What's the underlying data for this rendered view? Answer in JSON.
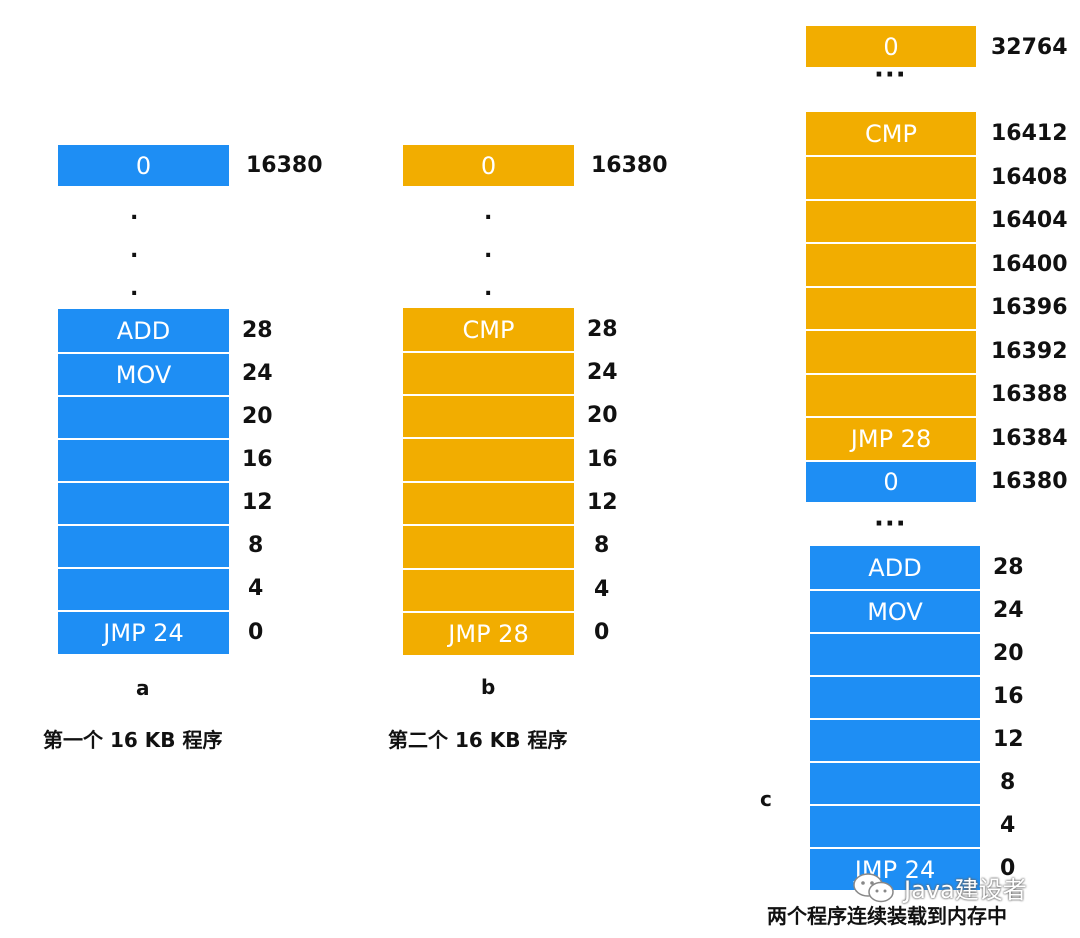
{
  "diagrams": {
    "a": {
      "label": "a",
      "caption": "第一个 16 KB 程序",
      "top": {
        "value": "0",
        "address": "16380"
      },
      "dots": [
        ".",
        ".",
        "."
      ],
      "rows": [
        {
          "value": "ADD",
          "address": "28"
        },
        {
          "value": "MOV",
          "address": "24"
        },
        {
          "value": "",
          "address": "20"
        },
        {
          "value": "",
          "address": "16"
        },
        {
          "value": "",
          "address": "12"
        },
        {
          "value": "",
          "address": "8"
        },
        {
          "value": "",
          "address": "4"
        },
        {
          "value": "JMP 24",
          "address": "0"
        }
      ]
    },
    "b": {
      "label": "b",
      "caption": "第二个 16 KB 程序",
      "top": {
        "value": "0",
        "address": "16380"
      },
      "dots": [
        ".",
        ".",
        "."
      ],
      "rows": [
        {
          "value": "CMP",
          "address": "28"
        },
        {
          "value": "",
          "address": "24"
        },
        {
          "value": "",
          "address": "20"
        },
        {
          "value": "",
          "address": "16"
        },
        {
          "value": "",
          "address": "12"
        },
        {
          "value": "",
          "address": "8"
        },
        {
          "value": "",
          "address": "4"
        },
        {
          "value": "JMP 28",
          "address": "0"
        }
      ]
    },
    "c": {
      "label": "c",
      "caption": "两个程序连续装载到内存中",
      "top": {
        "value": "0",
        "address": "32764"
      },
      "ellipsis_top": "···",
      "upper_rows": [
        {
          "value": "CMP",
          "address": "16412"
        },
        {
          "value": "",
          "address": "16408"
        },
        {
          "value": "",
          "address": "16404"
        },
        {
          "value": "",
          "address": "16400"
        },
        {
          "value": "",
          "address": "16396"
        },
        {
          "value": "",
          "address": "16392"
        },
        {
          "value": "",
          "address": "16388"
        },
        {
          "value": "JMP 28",
          "address": "16384"
        },
        {
          "value": "0",
          "address": "16380"
        }
      ],
      "ellipsis_mid": "···",
      "lower_rows": [
        {
          "value": "ADD",
          "address": "28"
        },
        {
          "value": "MOV",
          "address": "24"
        },
        {
          "value": "",
          "address": "20"
        },
        {
          "value": "",
          "address": "16"
        },
        {
          "value": "",
          "address": "12"
        },
        {
          "value": "",
          "address": "8"
        },
        {
          "value": "",
          "address": "4"
        },
        {
          "value": "JMP 24",
          "address": "0"
        }
      ]
    }
  },
  "colors": {
    "program1": "#1e8ef4",
    "program2": "#f2ad00"
  },
  "watermark": {
    "icon": "wechat-icon",
    "text": "Java建设者"
  }
}
